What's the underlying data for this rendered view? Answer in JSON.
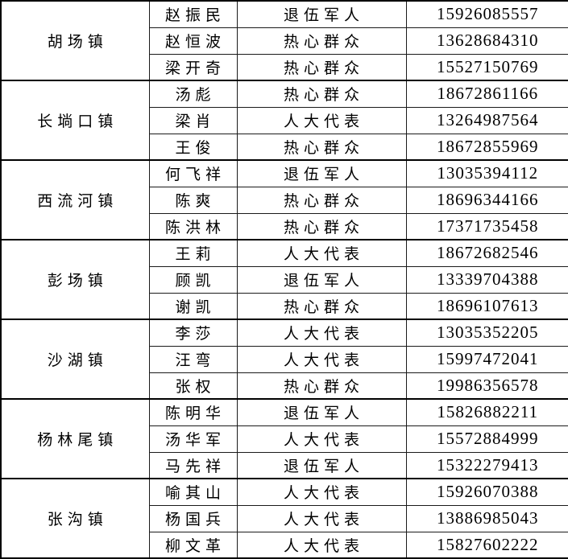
{
  "colors": {
    "background": "#ffffff",
    "border": "#000000",
    "text": "#000000"
  },
  "table": {
    "groups": [
      {
        "town": "胡场镇",
        "members": [
          {
            "name": "赵振民",
            "category": "退伍军人",
            "phone": "15926085557"
          },
          {
            "name": "赵恒波",
            "category": "热心群众",
            "phone": "13628684310"
          },
          {
            "name": "梁开奇",
            "category": "热心群众",
            "phone": "15527150769"
          }
        ]
      },
      {
        "town": "长埫口镇",
        "members": [
          {
            "name": "汤彪",
            "category": "热心群众",
            "phone": "18672861166"
          },
          {
            "name": "梁肖",
            "category": "人大代表",
            "phone": "13264987564"
          },
          {
            "name": "王俊",
            "category": "热心群众",
            "phone": "18672855969"
          }
        ]
      },
      {
        "town": "西流河镇",
        "members": [
          {
            "name": "何飞祥",
            "category": "退伍军人",
            "phone": "13035394112"
          },
          {
            "name": "陈爽",
            "category": "热心群众",
            "phone": "18696344166"
          },
          {
            "name": "陈洪林",
            "category": "热心群众",
            "phone": "17371735458"
          }
        ]
      },
      {
        "town": "彭场镇",
        "members": [
          {
            "name": "王莉",
            "category": "人大代表",
            "phone": "18672682546"
          },
          {
            "name": "顾凯",
            "category": "退伍军人",
            "phone": "13339704388"
          },
          {
            "name": "谢凯",
            "category": "热心群众",
            "phone": "18696107613"
          }
        ]
      },
      {
        "town": "沙湖镇",
        "members": [
          {
            "name": "李莎",
            "category": "人大代表",
            "phone": "13035352205"
          },
          {
            "name": "汪弯",
            "category": "人大代表",
            "phone": "15997472041"
          },
          {
            "name": "张权",
            "category": "热心群众",
            "phone": "19986356578"
          }
        ]
      },
      {
        "town": "杨林尾镇",
        "members": [
          {
            "name": "陈明华",
            "category": "退伍军人",
            "phone": "15826882211"
          },
          {
            "name": "汤华军",
            "category": "人大代表",
            "phone": "15572884999"
          },
          {
            "name": "马先祥",
            "category": "退伍军人",
            "phone": "15322279413"
          }
        ]
      },
      {
        "town": "张沟镇",
        "members": [
          {
            "name": "喻其山",
            "category": "人大代表",
            "phone": "15926070388"
          },
          {
            "name": "杨国兵",
            "category": "人大代表",
            "phone": "13886985043"
          },
          {
            "name": "柳文革",
            "category": "人大代表",
            "phone": "15827602222"
          }
        ]
      }
    ]
  }
}
